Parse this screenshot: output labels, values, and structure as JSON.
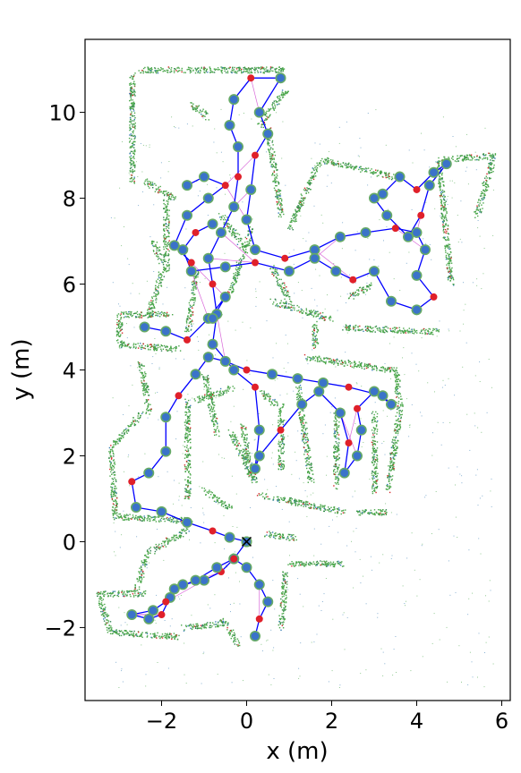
{
  "chart_data": {
    "type": "scatter",
    "title": "",
    "xlabel": "x (m)",
    "ylabel": "y (m)",
    "xlim": [
      -3.8,
      6.2
    ],
    "ylim": [
      -3.7,
      11.7
    ],
    "xticks": [
      -2,
      0,
      2,
      4,
      6
    ],
    "yticks": [
      -2,
      0,
      2,
      4,
      6,
      8,
      10
    ],
    "xtick_labels": [
      "−2",
      "0",
      "2",
      "4",
      "6"
    ],
    "ytick_labels": [
      "−2",
      "0",
      "2",
      "4",
      "6",
      "8",
      "10"
    ],
    "grid": false,
    "legend": "none",
    "colors": {
      "map_points": "#4aa64a",
      "map_points_dark": "#2f7f4f",
      "scan_blue": "#3a7fb5",
      "scan_red": "#d62728",
      "trajectory": "#0000ff",
      "loop_closures": "#cc33cc",
      "nodes": "#3b73c9",
      "node_edge": "#66aa66",
      "red_nodes": "#e0202a"
    },
    "series": [
      {
        "type": "line",
        "values": [
          [
            0.0,
            0.0
          ],
          [
            -0.4,
            0.1
          ],
          [
            -0.8,
            0.25
          ],
          [
            -1.4,
            0.45
          ],
          [
            -2.0,
            0.7
          ],
          [
            -2.6,
            0.8
          ],
          [
            -2.7,
            1.4
          ],
          [
            -2.3,
            1.6
          ],
          [
            -1.9,
            2.1
          ],
          [
            -1.9,
            2.9
          ],
          [
            -1.6,
            3.4
          ],
          [
            -1.2,
            3.9
          ],
          [
            -0.9,
            4.3
          ],
          [
            -0.5,
            4.2
          ],
          [
            0.0,
            4.0
          ],
          [
            0.6,
            3.9
          ],
          [
            1.2,
            3.8
          ],
          [
            1.8,
            3.7
          ],
          [
            2.4,
            3.6
          ],
          [
            3.2,
            3.4
          ],
          [
            3.4,
            3.2
          ],
          [
            3.0,
            3.5
          ],
          [
            2.6,
            3.1
          ],
          [
            2.7,
            2.6
          ],
          [
            2.6,
            2.0
          ],
          [
            2.3,
            1.6
          ],
          [
            2.4,
            2.3
          ],
          [
            2.2,
            3.0
          ],
          [
            1.7,
            3.5
          ],
          [
            1.3,
            3.2
          ],
          [
            0.8,
            2.6
          ],
          [
            0.3,
            2.0
          ],
          [
            0.2,
            1.7
          ],
          [
            0.3,
            2.6
          ],
          [
            0.2,
            3.6
          ],
          [
            -0.3,
            4.0
          ],
          [
            -0.8,
            4.6
          ],
          [
            -0.7,
            5.3
          ],
          [
            -0.8,
            6.0
          ],
          [
            -0.9,
            6.6
          ],
          [
            -0.6,
            7.2
          ],
          [
            -0.3,
            7.8
          ],
          [
            -0.2,
            8.5
          ],
          [
            -0.2,
            9.2
          ],
          [
            -0.4,
            9.7
          ],
          [
            -0.3,
            10.3
          ],
          [
            0.1,
            10.8
          ],
          [
            0.8,
            10.8
          ],
          [
            0.3,
            10.0
          ],
          [
            0.5,
            9.5
          ],
          [
            0.2,
            9.0
          ],
          [
            0.1,
            8.2
          ],
          [
            0.0,
            7.5
          ],
          [
            0.2,
            6.8
          ],
          [
            0.9,
            6.6
          ],
          [
            1.6,
            6.8
          ],
          [
            2.2,
            7.1
          ],
          [
            2.8,
            7.2
          ],
          [
            3.5,
            7.3
          ],
          [
            4.0,
            7.2
          ],
          [
            4.2,
            6.8
          ],
          [
            4.0,
            6.2
          ],
          [
            4.4,
            5.7
          ],
          [
            4.0,
            5.4
          ],
          [
            3.4,
            5.6
          ],
          [
            3.0,
            6.3
          ],
          [
            2.5,
            6.1
          ],
          [
            2.1,
            6.3
          ],
          [
            1.6,
            6.6
          ],
          [
            1.0,
            6.3
          ],
          [
            0.2,
            6.5
          ],
          [
            -0.5,
            6.4
          ],
          [
            -1.3,
            6.3
          ],
          [
            -1.5,
            6.8
          ],
          [
            -1.2,
            7.2
          ],
          [
            -0.8,
            7.4
          ]
        ]
      },
      {
        "type": "line",
        "values": [
          [
            0.0,
            0.0
          ],
          [
            -0.3,
            -0.4
          ],
          [
            -0.6,
            -0.7
          ],
          [
            -1.0,
            -0.9
          ],
          [
            -1.5,
            -1.0
          ],
          [
            -1.8,
            -1.3
          ],
          [
            -2.0,
            -1.7
          ],
          [
            -2.3,
            -1.8
          ],
          [
            -2.7,
            -1.7
          ],
          [
            -2.2,
            -1.6
          ],
          [
            -1.9,
            -1.4
          ],
          [
            -1.7,
            -1.1
          ],
          [
            -1.2,
            -0.9
          ],
          [
            -0.7,
            -0.6
          ],
          [
            -0.3,
            -0.4
          ],
          [
            0.0,
            -0.6
          ],
          [
            0.3,
            -1.0
          ],
          [
            0.5,
            -1.4
          ],
          [
            0.3,
            -1.8
          ],
          [
            0.2,
            -2.2
          ]
        ]
      },
      {
        "type": "line",
        "values": [
          [
            3.2,
            8.1
          ],
          [
            3.6,
            8.5
          ],
          [
            4.0,
            8.2
          ],
          [
            4.4,
            8.6
          ],
          [
            4.7,
            8.8
          ],
          [
            4.3,
            8.3
          ],
          [
            4.1,
            7.6
          ],
          [
            3.8,
            7.1
          ],
          [
            3.3,
            7.6
          ],
          [
            3.0,
            8.0
          ]
        ]
      },
      {
        "type": "line",
        "values": [
          [
            -1.4,
            8.3
          ],
          [
            -1.0,
            8.5
          ],
          [
            -0.5,
            8.3
          ],
          [
            -0.9,
            8.0
          ],
          [
            -1.4,
            7.6
          ],
          [
            -1.7,
            6.9
          ],
          [
            -1.3,
            6.5
          ]
        ]
      },
      {
        "type": "line",
        "values": [
          [
            -2.4,
            5.0
          ],
          [
            -1.9,
            4.9
          ],
          [
            -1.4,
            4.7
          ],
          [
            -0.9,
            5.2
          ],
          [
            -0.5,
            5.7
          ],
          [
            -0.8,
            5.2
          ]
        ]
      }
    ]
  }
}
